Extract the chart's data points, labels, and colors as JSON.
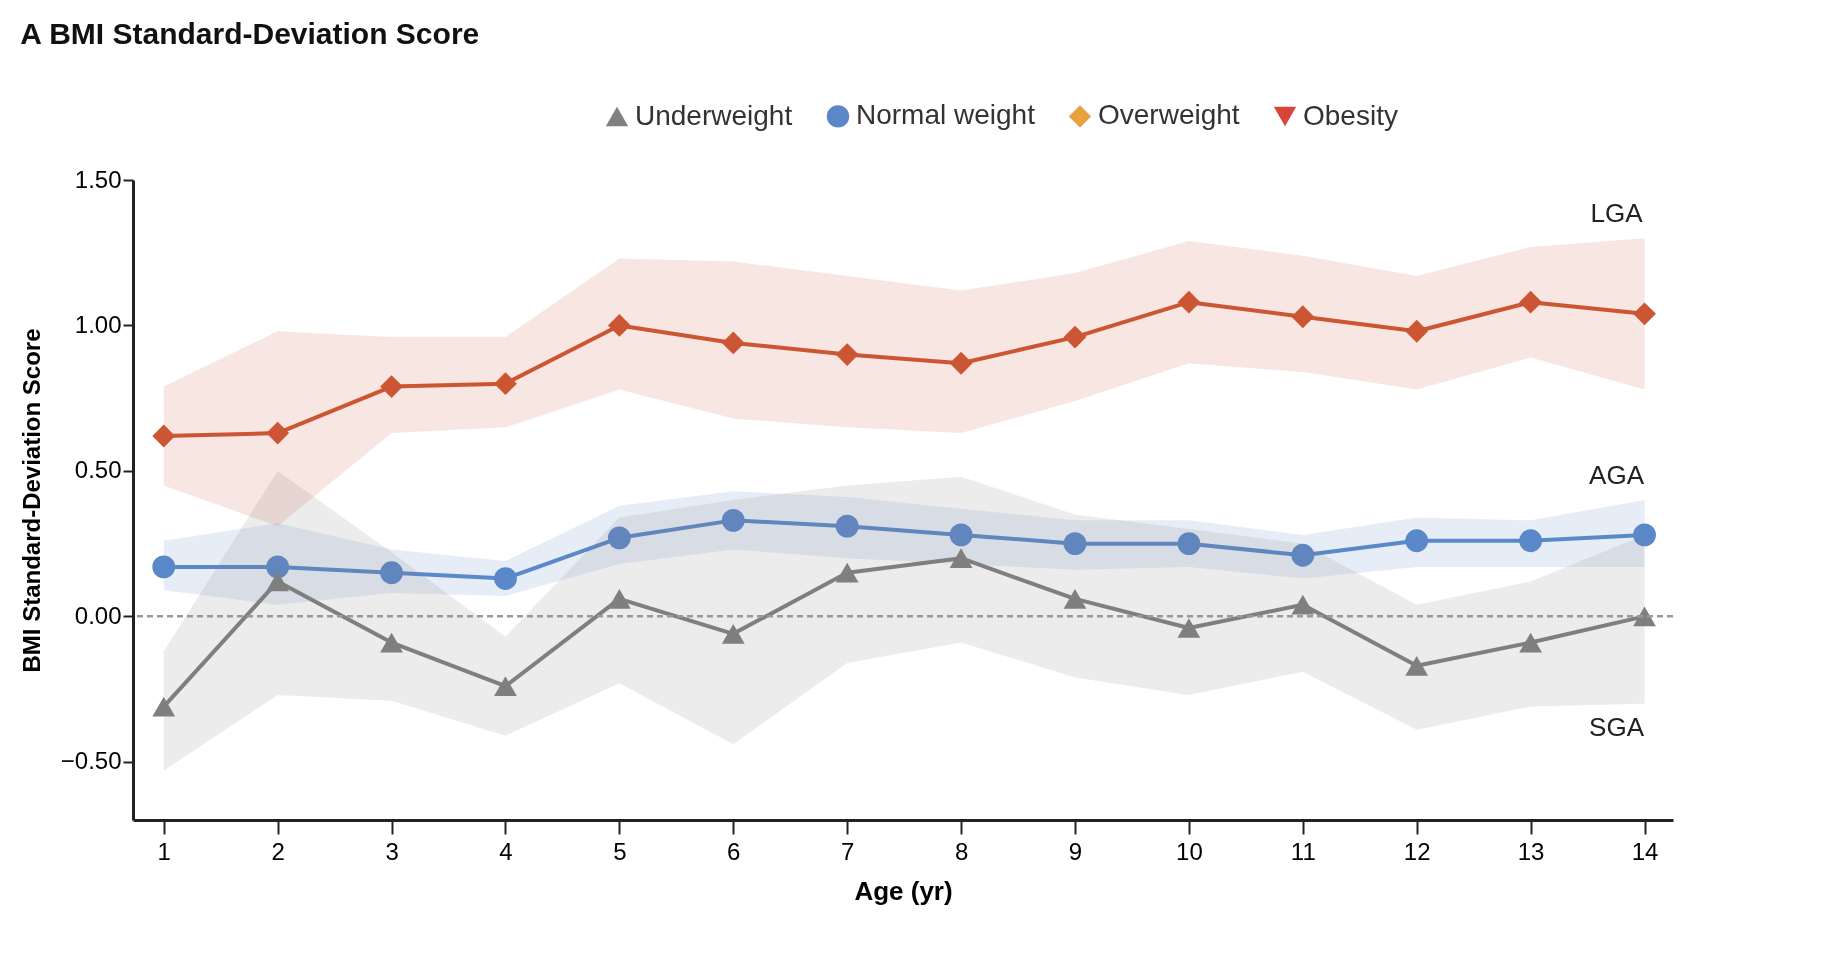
{
  "chart_data": {
    "type": "line",
    "title": "A BMI Standard-Deviation Score",
    "xlabel": "Age (yr)",
    "ylabel": "BMI Standard-Deviation Score",
    "x": [
      1,
      2,
      3,
      4,
      5,
      6,
      7,
      8,
      9,
      10,
      11,
      12,
      13,
      14
    ],
    "xlim": [
      0.73,
      14.25
    ],
    "xticks": [
      1,
      2,
      3,
      4,
      5,
      6,
      7,
      8,
      9,
      10,
      11,
      12,
      13,
      14
    ],
    "ylim": [
      -0.7,
      1.5
    ],
    "yticks": [
      {
        "value": 1.5,
        "label": "1.50"
      },
      {
        "value": 1,
        "label": "1.00"
      },
      {
        "value": 0.5,
        "label": "0.50"
      },
      {
        "value": 0,
        "label": "0.00"
      },
      {
        "value": -0.5,
        "label": "−0.50"
      }
    ],
    "grid": false,
    "legend": "top right",
    "line_style": "solid",
    "ref_lines": [
      {
        "axis": "y",
        "value": 0,
        "color": "#999999",
        "line_style": "dashed"
      }
    ],
    "series": [
      {
        "name": "LGA",
        "color": "#cc5533",
        "marker": "diamond",
        "values": [
          0.62,
          0.63,
          0.79,
          0.8,
          1.0,
          0.94,
          0.9,
          0.87,
          0.96,
          1.08,
          1.03,
          0.98,
          1.08,
          1.04
        ],
        "upper": [
          0.79,
          0.98,
          0.96,
          0.96,
          1.23,
          1.22,
          1.17,
          1.12,
          1.18,
          1.29,
          1.24,
          1.17,
          1.27,
          1.3
        ],
        "lower": [
          0.45,
          0.31,
          0.63,
          0.65,
          0.78,
          0.68,
          0.65,
          0.63,
          0.74,
          0.87,
          0.84,
          0.78,
          0.89,
          0.78
        ]
      },
      {
        "name": "AGA",
        "color": "#5b88c8",
        "marker": "circle",
        "values": [
          0.17,
          0.17,
          0.15,
          0.13,
          0.27,
          0.33,
          0.31,
          0.28,
          0.25,
          0.25,
          0.21,
          0.26,
          0.26,
          0.28
        ],
        "upper": [
          0.26,
          0.32,
          0.23,
          0.19,
          0.38,
          0.43,
          0.41,
          0.37,
          0.33,
          0.33,
          0.28,
          0.34,
          0.33,
          0.4
        ],
        "lower": [
          0.09,
          0.04,
          0.08,
          0.07,
          0.18,
          0.23,
          0.2,
          0.18,
          0.16,
          0.17,
          0.13,
          0.17,
          0.17,
          0.17
        ]
      },
      {
        "name": "SGA",
        "color": "#7f7f7f",
        "marker": "triangle",
        "values": [
          -0.31,
          0.12,
          -0.09,
          -0.24,
          0.06,
          -0.06,
          0.15,
          0.2,
          0.06,
          -0.04,
          0.04,
          -0.17,
          -0.09,
          0.0
        ],
        "upper": [
          -0.12,
          0.5,
          0.22,
          -0.07,
          0.34,
          0.4,
          0.45,
          0.48,
          0.35,
          0.3,
          0.25,
          0.04,
          0.12,
          0.28
        ],
        "lower": [
          -0.53,
          -0.27,
          -0.29,
          -0.41,
          -0.23,
          -0.44,
          -0.16,
          -0.09,
          -0.21,
          -0.27,
          -0.19,
          -0.39,
          -0.31,
          -0.3
        ]
      },
      {
        "name": "Underweight",
        "color": "#808080",
        "marker": "triangle",
        "values": [
          null,
          null,
          null,
          null,
          null,
          null,
          null,
          null,
          null,
          null,
          null,
          null,
          null,
          null
        ]
      },
      {
        "name": "Normal weight",
        "color": "#5b87c9",
        "marker": "circle",
        "values": [
          null,
          null,
          null,
          null,
          null,
          null,
          null,
          null,
          null,
          null,
          null,
          null,
          null,
          null
        ]
      },
      {
        "name": "Overweight",
        "color": "#e8a040",
        "marker": "diamond",
        "values": [
          null,
          null,
          null,
          null,
          null,
          null,
          null,
          null,
          null,
          null,
          null,
          null,
          null,
          null
        ]
      },
      {
        "name": "Obesity",
        "color": "#d8453a",
        "marker": "triangle-down",
        "values": [
          null,
          null,
          null,
          null,
          null,
          null,
          null,
          null,
          null,
          null,
          null,
          null,
          null,
          null
        ]
      }
    ]
  }
}
